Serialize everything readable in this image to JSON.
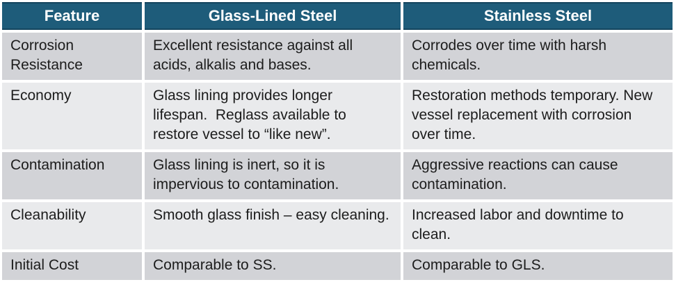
{
  "title": "Glass-Lined Steel vs Stainless Steel comparison table",
  "colors": {
    "header_bg": "#1E5C7A",
    "header_border": "#14455E",
    "header_text": "#FFFFFF",
    "band_dark": "#D2D3D7",
    "band_light": "#E9EAEC",
    "body_text": "#1C1C1C",
    "gap": "#FFFFFF"
  },
  "table": {
    "headers": [
      "Feature",
      "Glass-Lined Steel",
      "Stainless Steel"
    ],
    "rows": [
      {
        "feature": "Corrosion Resistance",
        "glass_lined_steel": "Excellent resistance against all acids, alkalis and bases.",
        "stainless_steel": "Corrodes over time with harsh chemicals."
      },
      {
        "feature": "Economy",
        "glass_lined_steel": "Glass lining provides longer lifespan.  Reglass available to restore vessel to “like new”.",
        "stainless_steel": "Restoration methods temporary. New vessel replacement with corrosion over time."
      },
      {
        "feature": "Contamination",
        "glass_lined_steel": "Glass lining is inert, so it is impervious to contamination.",
        "stainless_steel": "Aggressive reactions can cause contamination."
      },
      {
        "feature": "Cleanability",
        "glass_lined_steel": "Smooth glass finish – easy cleaning.",
        "stainless_steel": "Increased labor and downtime to clean."
      },
      {
        "feature": "Initial Cost",
        "glass_lined_steel": "Comparable to SS.",
        "stainless_steel": "Comparable to GLS."
      }
    ]
  }
}
